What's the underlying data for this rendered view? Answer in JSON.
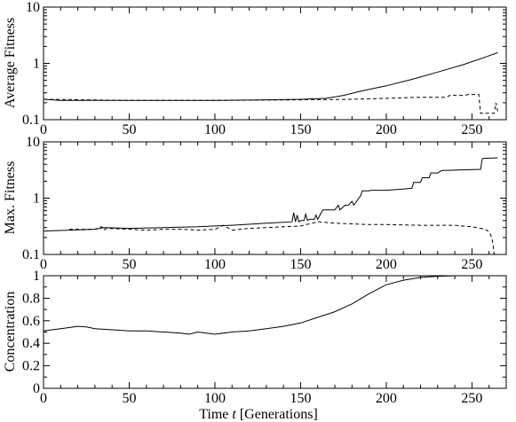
{
  "chart_data": [
    {
      "type": "line",
      "ylabel": "Average Fitness",
      "yscale": "log",
      "ylim": [
        0.1,
        10
      ],
      "yticks": [
        "0.1",
        "1",
        "10"
      ],
      "xlim": [
        0,
        270
      ],
      "xticks": [
        "0",
        "50",
        "100",
        "150",
        "200",
        "250"
      ],
      "series": [
        {
          "style": "solid",
          "x": [
            0,
            10,
            50,
            100,
            130,
            150,
            165,
            175,
            185,
            200,
            215,
            230,
            245,
            258,
            265
          ],
          "y": [
            0.23,
            0.22,
            0.22,
            0.22,
            0.225,
            0.23,
            0.24,
            0.27,
            0.32,
            0.4,
            0.52,
            0.7,
            0.95,
            1.3,
            1.55
          ]
        },
        {
          "style": "dashed",
          "x": [
            0,
            50,
            100,
            150,
            180,
            200,
            220,
            235,
            238,
            240,
            245,
            248,
            250,
            252,
            254,
            255,
            256,
            257,
            258,
            260,
            261,
            263,
            264,
            265
          ],
          "y": [
            0.23,
            0.22,
            0.22,
            0.225,
            0.23,
            0.24,
            0.25,
            0.25,
            0.28,
            0.27,
            0.27,
            0.28,
            0.28,
            0.28,
            0.28,
            0.13,
            0.13,
            0.13,
            0.13,
            0.13,
            0.13,
            0.13,
            0.2,
            0.14
          ]
        }
      ]
    },
    {
      "type": "line",
      "ylabel": "Max. Fitness",
      "yscale": "log",
      "ylim": [
        0.1,
        10
      ],
      "yticks": [
        "0.1",
        "1",
        "10"
      ],
      "xlim": [
        0,
        270
      ],
      "xticks": [
        "0",
        "50",
        "100",
        "150",
        "200",
        "250"
      ],
      "series": [
        {
          "style": "solid",
          "x": [
            0,
            30,
            35,
            50,
            70,
            90,
            100,
            110,
            130,
            145,
            146,
            147,
            148,
            149,
            150,
            152,
            153,
            154,
            155,
            156,
            158,
            159,
            160,
            162,
            163,
            168,
            170,
            172,
            173,
            176,
            178,
            180,
            181,
            185,
            186,
            190,
            191,
            198,
            200,
            210,
            215,
            216,
            220,
            221,
            225,
            226,
            230,
            232,
            233,
            255,
            256,
            257,
            265
          ],
          "y": [
            0.26,
            0.28,
            0.3,
            0.29,
            0.3,
            0.31,
            0.32,
            0.33,
            0.36,
            0.38,
            0.55,
            0.38,
            0.5,
            0.38,
            0.4,
            0.4,
            0.52,
            0.4,
            0.42,
            0.42,
            0.42,
            0.5,
            0.42,
            0.55,
            0.62,
            0.62,
            0.62,
            0.75,
            0.62,
            0.75,
            0.75,
            0.88,
            0.75,
            1.1,
            1.35,
            1.35,
            1.38,
            1.38,
            1.38,
            1.45,
            1.5,
            1.9,
            1.9,
            2.3,
            2.3,
            2.8,
            2.8,
            3.05,
            3.1,
            3.25,
            5.0,
            5.1,
            5.2
          ]
        },
        {
          "style": "dashed",
          "x": [
            15,
            20,
            30,
            34,
            35,
            37,
            50,
            60,
            70,
            80,
            90,
            100,
            105,
            110,
            120,
            130,
            150,
            160,
            170,
            180,
            190,
            200,
            220,
            240,
            250,
            258,
            260,
            261,
            262,
            263
          ],
          "y": [
            0.28,
            0.28,
            0.28,
            0.31,
            0.27,
            0.29,
            0.28,
            0.27,
            0.28,
            0.28,
            0.27,
            0.28,
            0.33,
            0.27,
            0.29,
            0.3,
            0.32,
            0.38,
            0.36,
            0.35,
            0.34,
            0.34,
            0.33,
            0.33,
            0.31,
            0.28,
            0.25,
            0.22,
            0.17,
            0.1
          ]
        }
      ]
    },
    {
      "type": "line",
      "ylabel": "Concentration",
      "xlabel": "Time t [Generations]",
      "yscale": "linear",
      "ylim": [
        0,
        1
      ],
      "yticks": [
        "0",
        "0.2",
        "0.4",
        "0.6",
        "0.8",
        "1"
      ],
      "xlim": [
        0,
        270
      ],
      "xticks": [
        "0",
        "50",
        "100",
        "150",
        "200",
        "250"
      ],
      "series": [
        {
          "style": "solid",
          "x": [
            0,
            10,
            20,
            25,
            30,
            40,
            50,
            60,
            70,
            80,
            85,
            90,
            100,
            110,
            120,
            130,
            140,
            150,
            160,
            170,
            180,
            190,
            200,
            210,
            220,
            230,
            240,
            250,
            265
          ],
          "y": [
            0.51,
            0.53,
            0.55,
            0.545,
            0.53,
            0.52,
            0.51,
            0.51,
            0.5,
            0.49,
            0.48,
            0.5,
            0.48,
            0.5,
            0.51,
            0.53,
            0.55,
            0.58,
            0.63,
            0.68,
            0.75,
            0.84,
            0.92,
            0.96,
            0.985,
            0.995,
            1.0,
            1.0,
            1.0
          ]
        }
      ]
    }
  ]
}
